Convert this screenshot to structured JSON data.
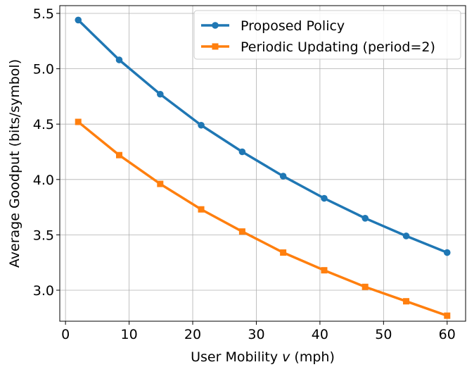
{
  "chart_data": {
    "type": "line",
    "xlabel_parts": [
      "User Mobility ",
      "v",
      " (mph)"
    ],
    "ylabel": "Average Goodput (bits/symbol)",
    "x": [
      2,
      8.44,
      14.89,
      21.33,
      27.78,
      34.22,
      40.67,
      47.11,
      53.56,
      60
    ],
    "xlim": [
      -0.9,
      62.9
    ],
    "ylim": [
      2.72,
      5.57
    ],
    "xticks": [
      0,
      10,
      20,
      30,
      40,
      50,
      60
    ],
    "yticks": [
      3.0,
      3.5,
      4.0,
      4.5,
      5.0,
      5.5
    ],
    "grid": true,
    "legend_position": "top-right",
    "series": [
      {
        "name": "Proposed Policy",
        "color": "#1f77b4",
        "marker": "circle",
        "values": [
          5.44,
          5.08,
          4.77,
          4.49,
          4.25,
          4.03,
          3.83,
          3.65,
          3.49,
          3.34
        ]
      },
      {
        "name": "Periodic Updating (period=2)",
        "color": "#ff7f0e",
        "marker": "square",
        "values": [
          4.52,
          4.22,
          3.96,
          3.73,
          3.53,
          3.34,
          3.18,
          3.03,
          2.9,
          2.77
        ]
      }
    ]
  }
}
